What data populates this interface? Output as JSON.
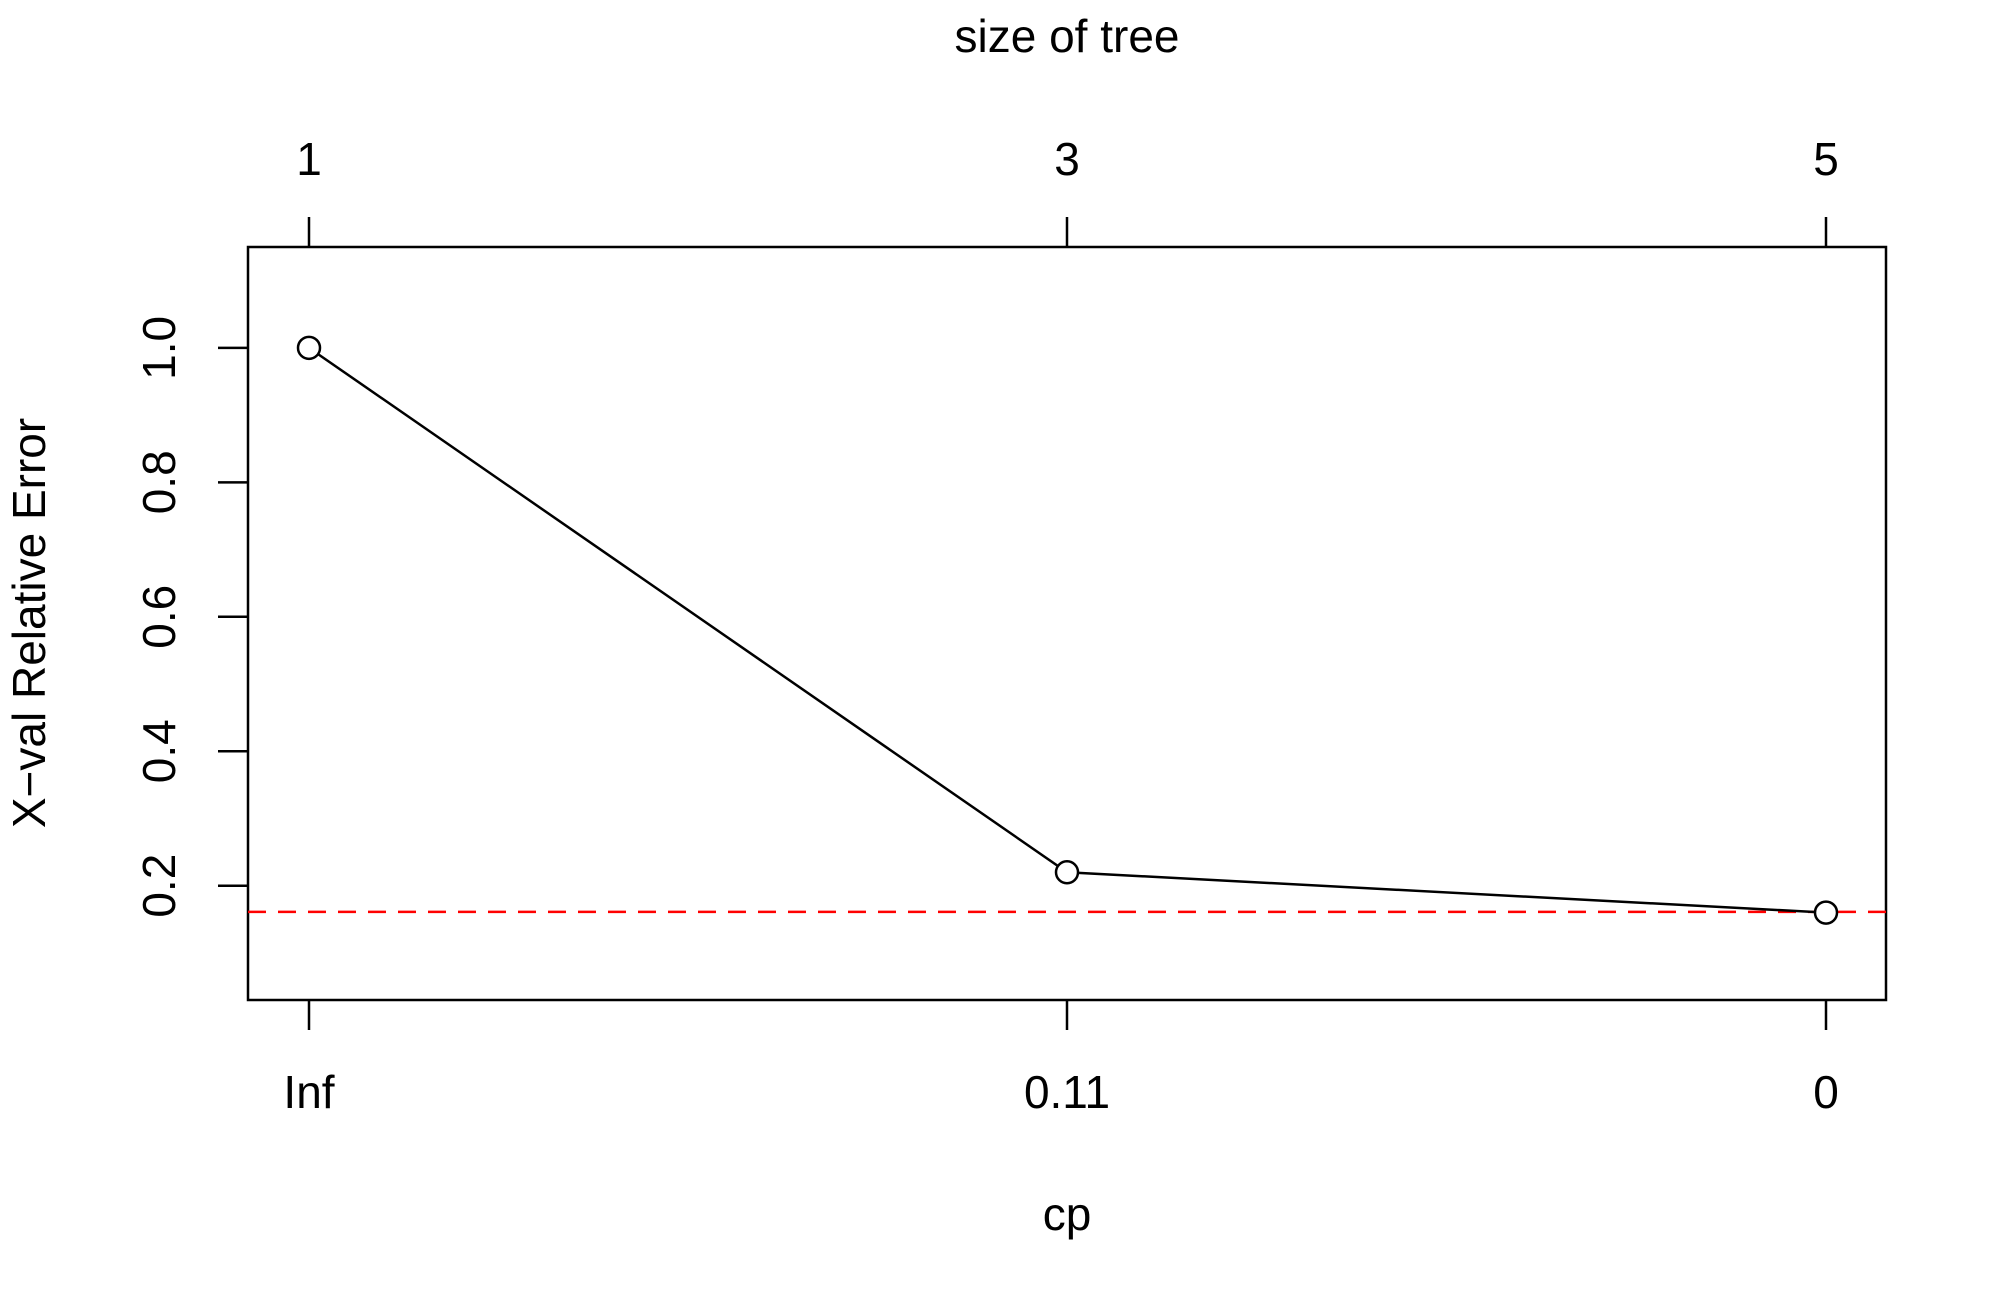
{
  "chart_data": {
    "type": "line",
    "top_axis_title": "size of tree",
    "top_tick_labels": [
      "1",
      "3",
      "5"
    ],
    "xlabel": "cp",
    "x_tick_labels": [
      "Inf",
      "0.11",
      "0"
    ],
    "ylabel": "X−val Relative Error",
    "y_ticks": [
      0.2,
      0.4,
      0.6,
      0.8,
      1.0
    ],
    "y_tick_labels": [
      "0.2",
      "0.4",
      "0.6",
      "0.8",
      "1.0"
    ],
    "ylim": [
      0.03,
      1.15
    ],
    "series": [
      {
        "x": [
          "Inf",
          "0.11",
          "0"
        ],
        "size": [
          1,
          3,
          5
        ],
        "y": [
          1.0,
          0.22,
          0.16
        ],
        "marker": "open-circle",
        "color": "#000000"
      }
    ],
    "reference_line": {
      "y": 0.161,
      "style": "dashed",
      "color": "#ff0000"
    },
    "grid": false
  }
}
